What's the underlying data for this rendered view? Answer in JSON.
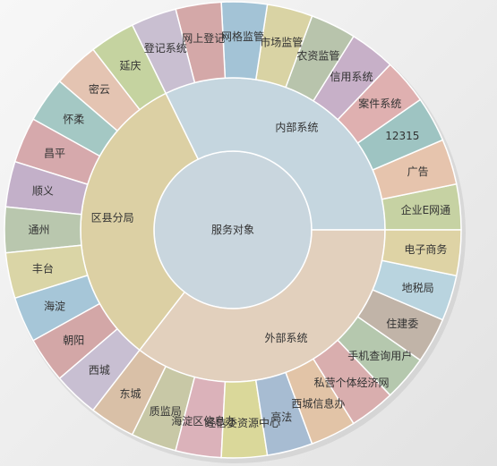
{
  "colors": {
    "background": "#efefef",
    "center": "#c9d6de"
  },
  "chart_data": {
    "type": "sunburst",
    "title": "",
    "root": {
      "name": "服务对象"
    },
    "groups": [
      {
        "name": "内部系统",
        "color": "#c5d6df",
        "children": [
          {
            "name": "企业E网通",
            "value": 1,
            "color": "#c6d2a3"
          },
          {
            "name": "广告",
            "value": 1,
            "color": "#e6c4ad"
          },
          {
            "name": "12315",
            "value": 1,
            "color": "#9ec4c2"
          },
          {
            "name": "案件系统",
            "value": 1,
            "color": "#dfb0b0"
          },
          {
            "name": "信用系统",
            "value": 1,
            "color": "#c7b0c8"
          },
          {
            "name": "农资监管",
            "value": 1,
            "color": "#b8c4ac"
          },
          {
            "name": "市场监管",
            "value": 1,
            "color": "#d9d3a4"
          },
          {
            "name": "网格监管",
            "value": 1,
            "color": "#a3c3d6"
          },
          {
            "name": "网上登记",
            "value": 1,
            "color": "#d4a8a8"
          },
          {
            "name": "登记系统",
            "value": 1,
            "color": "#c9bfd1"
          }
        ]
      },
      {
        "name": "区县分局",
        "color": "#dcd0a4",
        "children": [
          {
            "name": "延庆",
            "value": 1,
            "color": "#c5d3a0"
          },
          {
            "name": "密云",
            "value": 1,
            "color": "#e4c4b2"
          },
          {
            "name": "怀柔",
            "value": 1,
            "color": "#a4c8c4"
          },
          {
            "name": "昌平",
            "value": 1,
            "color": "#d6a9ac"
          },
          {
            "name": "顺义",
            "value": 1,
            "color": "#c3b0c9"
          },
          {
            "name": "通州",
            "value": 1,
            "color": "#b9c7ae"
          },
          {
            "name": "丰台",
            "value": 1,
            "color": "#dad5a6"
          },
          {
            "name": "海淀",
            "value": 1,
            "color": "#a6c6d8"
          },
          {
            "name": "朝阳",
            "value": 1,
            "color": "#d3a7a7"
          },
          {
            "name": "西城",
            "value": 1,
            "color": "#c8bfd2"
          }
        ]
      },
      {
        "name": "外部系统",
        "color": "#e2d0bd",
        "children": [
          {
            "name": "东城",
            "value": 1,
            "color": "#d9c0a7"
          },
          {
            "name": "质监局",
            "value": 1,
            "color": "#c8c8a6"
          },
          {
            "name": "海淀区信息办",
            "value": 1,
            "color": "#dbb2ba"
          },
          {
            "name": "经信委资源中心",
            "value": 1,
            "color": "#dad89a"
          },
          {
            "name": "高法",
            "value": 1,
            "color": "#a7bcd2"
          },
          {
            "name": "西城信息办",
            "value": 1,
            "color": "#e2c4a7"
          },
          {
            "name": "私营个体经济网",
            "value": 1,
            "color": "#d9aeae"
          },
          {
            "name": "手机查询用户",
            "value": 1,
            "color": "#b5c8ae"
          },
          {
            "name": "住建委",
            "value": 1,
            "color": "#c1b4a8"
          },
          {
            "name": "地税局",
            "value": 1,
            "color": "#b9d4df"
          },
          {
            "name": "电子商务",
            "value": 1,
            "color": "#ded3a5"
          }
        ]
      }
    ]
  }
}
